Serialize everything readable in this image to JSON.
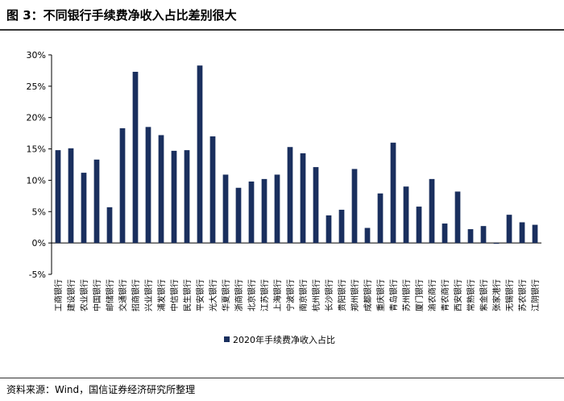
{
  "title": "图 3：不同银行手续费净收入占比差别很大",
  "source": "资料来源：Wind，国信证券经济研究所整理",
  "chart_data": {
    "type": "bar",
    "title": "",
    "xlabel": "",
    "ylabel": "",
    "ylim": [
      -5,
      30
    ],
    "yticks": [
      "30%",
      "25%",
      "20%",
      "15%",
      "10%",
      "5%",
      "0%",
      "-5%"
    ],
    "ytick_values": [
      30,
      25,
      20,
      15,
      10,
      5,
      0,
      -5
    ],
    "grid": false,
    "legend": "bottom",
    "bar_color": "#1a2f5e",
    "categories": [
      "工商银行",
      "建设银行",
      "农业银行",
      "中国银行",
      "邮储银行",
      "交通银行",
      "招商银行",
      "兴业银行",
      "浦发银行",
      "中信银行",
      "民生银行",
      "平安银行",
      "光大银行",
      "华夏银行",
      "浙商银行",
      "北京银行",
      "江苏银行",
      "上海银行",
      "宁波银行",
      "南京银行",
      "杭州银行",
      "长沙银行",
      "贵阳银行",
      "郑州银行",
      "成都银行",
      "重庆银行",
      "青岛银行",
      "苏州银行",
      "厦门银行",
      "渝农商行",
      "青农商行",
      "西安银行",
      "常熟银行",
      "紫金银行",
      "张家港行",
      "无锡银行",
      "苏农银行",
      "江阴银行"
    ],
    "series": [
      {
        "name": "2020年手续费净收入占比",
        "values": [
          14.8,
          15.1,
          11.2,
          13.3,
          5.7,
          18.3,
          27.3,
          18.5,
          17.2,
          14.7,
          14.8,
          28.3,
          17.0,
          10.9,
          8.8,
          9.8,
          10.2,
          10.9,
          15.3,
          14.3,
          12.1,
          4.4,
          5.3,
          11.8,
          2.4,
          7.9,
          16.0,
          9.0,
          5.8,
          10.2,
          3.1,
          8.2,
          2.2,
          2.7,
          -0.1,
          4.5,
          3.3,
          2.9
        ]
      }
    ]
  }
}
